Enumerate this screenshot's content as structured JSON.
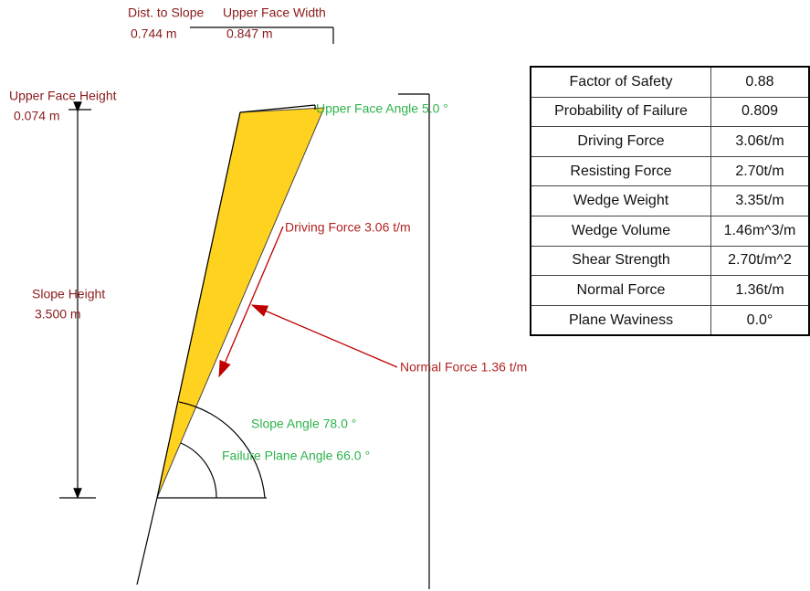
{
  "diagram": {
    "dimensions": {
      "dist_to_slope": {
        "label": "Dist. to Slope",
        "value": "0.744 m"
      },
      "upper_face_width": {
        "label": "Upper Face Width",
        "value": "0.847 m"
      },
      "upper_face_height": {
        "label": "Upper Face Height",
        "value": "0.074 m"
      },
      "slope_height": {
        "label": "Slope Height",
        "value": "3.500 m"
      }
    },
    "angles": {
      "upper_face_angle": "Upper Face Angle 5.0 °",
      "slope_angle": "Slope Angle 78.0 °",
      "failure_plane_angle": "Failure Plane Angle 66.0 °"
    },
    "forces": {
      "driving": "Driving Force 3.06 t/m",
      "normal": "Normal Force 1.36 t/m"
    }
  },
  "table": {
    "rows": [
      [
        "Factor of Safety",
        "0.88"
      ],
      [
        "Probability of Failure",
        "0.809"
      ],
      [
        "Driving Force",
        "3.06t/m"
      ],
      [
        "Resisting Force",
        "2.70t/m"
      ],
      [
        "Wedge Weight",
        "3.35t/m"
      ],
      [
        "Wedge Volume",
        "1.46m^3/m"
      ],
      [
        "Shear Strength",
        "2.70t/m^2"
      ],
      [
        "Normal Force",
        "1.36t/m"
      ],
      [
        "Plane Waviness",
        "0.0°"
      ]
    ]
  }
}
